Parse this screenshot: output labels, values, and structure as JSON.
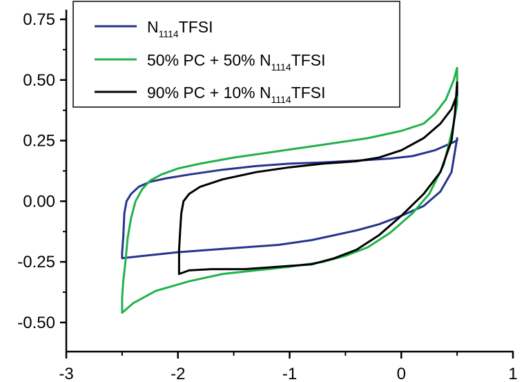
{
  "chart_data": {
    "type": "line",
    "title": "",
    "xlabel": "",
    "ylabel": "",
    "xlim": [
      -3,
      1
    ],
    "ylim": [
      -0.62,
      0.75
    ],
    "x_ticks": [
      -3,
      -2,
      -1,
      0,
      1
    ],
    "x_tick_labels": [
      "-3",
      "-2",
      "-1",
      "0",
      "1"
    ],
    "y_ticks": [
      0.75,
      0.5,
      0.25,
      0.0,
      -0.25,
      -0.5
    ],
    "y_tick_labels": [
      "0.75",
      "0.50",
      "0.25",
      "0.00",
      "-0.25",
      "-0.50"
    ],
    "grid": false,
    "legend_position": "top-left",
    "series": [
      {
        "legend_parts": [
          {
            "text": "N",
            "sub": false
          },
          {
            "text": "1114",
            "sub": true
          },
          {
            "text": "TFSI",
            "sub": false
          }
        ],
        "color": "#26348c",
        "x": [
          0.5,
          0.5,
          0.3,
          0.1,
          -0.1,
          -0.3,
          -0.5,
          -0.7,
          -1.0,
          -1.3,
          -1.6,
          -1.9,
          -2.1,
          -2.25,
          -2.35,
          -2.42,
          -2.46,
          -2.48,
          -2.49,
          -2.5,
          -2.5,
          -2.3,
          -2.0,
          -1.7,
          -1.4,
          -1.1,
          -0.8,
          -0.6,
          -0.4,
          -0.2,
          0.0,
          0.2,
          0.35,
          0.45,
          0.5
        ],
        "y": [
          0.26,
          0.25,
          0.21,
          0.186,
          0.176,
          0.17,
          0.165,
          0.16,
          0.155,
          0.145,
          0.13,
          0.11,
          0.095,
          0.08,
          0.06,
          0.03,
          0.0,
          -0.05,
          -0.15,
          -0.21,
          -0.235,
          -0.225,
          -0.21,
          -0.2,
          -0.19,
          -0.18,
          -0.16,
          -0.14,
          -0.12,
          -0.095,
          -0.06,
          -0.02,
          0.04,
          0.12,
          0.26
        ]
      },
      {
        "legend_parts": [
          {
            "text": "50% PC + 50% N",
            "sub": false
          },
          {
            "text": "1114",
            "sub": true
          },
          {
            "text": "TFSI",
            "sub": false
          }
        ],
        "color": "#1fb24a",
        "x": [
          0.5,
          0.47,
          0.4,
          0.3,
          0.2,
          0.0,
          -0.3,
          -0.6,
          -0.9,
          -1.2,
          -1.5,
          -1.8,
          -2.0,
          -2.15,
          -2.25,
          -2.32,
          -2.38,
          -2.42,
          -2.45,
          -2.47,
          -2.49,
          -2.5,
          -2.5,
          -2.4,
          -2.2,
          -1.9,
          -1.6,
          -1.3,
          -1.0,
          -0.7,
          -0.5,
          -0.3,
          -0.1,
          0.1,
          0.25,
          0.38,
          0.46,
          0.5,
          0.5
        ],
        "y": [
          0.55,
          0.5,
          0.42,
          0.36,
          0.32,
          0.29,
          0.26,
          0.24,
          0.22,
          0.2,
          0.18,
          0.155,
          0.135,
          0.11,
          0.085,
          0.05,
          0.0,
          -0.07,
          -0.15,
          -0.25,
          -0.33,
          -0.4,
          -0.46,
          -0.42,
          -0.37,
          -0.33,
          -0.3,
          -0.285,
          -0.27,
          -0.25,
          -0.225,
          -0.19,
          -0.13,
          -0.05,
          0.03,
          0.15,
          0.3,
          0.4,
          0.55
        ]
      },
      {
        "legend_parts": [
          {
            "text": "90% PC + 10% N",
            "sub": false
          },
          {
            "text": "1114",
            "sub": true
          },
          {
            "text": "TFSI",
            "sub": false
          }
        ],
        "color": "#000000",
        "x": [
          0.5,
          0.5,
          0.45,
          0.35,
          0.2,
          0.0,
          -0.2,
          -0.4,
          -0.7,
          -1.0,
          -1.3,
          -1.6,
          -1.8,
          -1.9,
          -1.95,
          -1.97,
          -1.98,
          -1.99,
          -1.99,
          -1.9,
          -1.7,
          -1.4,
          -1.1,
          -0.8,
          -0.6,
          -0.4,
          -0.2,
          0.0,
          0.2,
          0.35,
          0.45,
          0.48,
          0.5
        ],
        "y": [
          0.49,
          0.44,
          0.38,
          0.32,
          0.26,
          0.21,
          0.18,
          0.165,
          0.155,
          0.14,
          0.12,
          0.09,
          0.06,
          0.03,
          0.0,
          -0.05,
          -0.12,
          -0.2,
          -0.3,
          -0.285,
          -0.28,
          -0.28,
          -0.27,
          -0.26,
          -0.235,
          -0.2,
          -0.14,
          -0.06,
          0.03,
          0.12,
          0.25,
          0.36,
          0.49
        ]
      }
    ]
  }
}
